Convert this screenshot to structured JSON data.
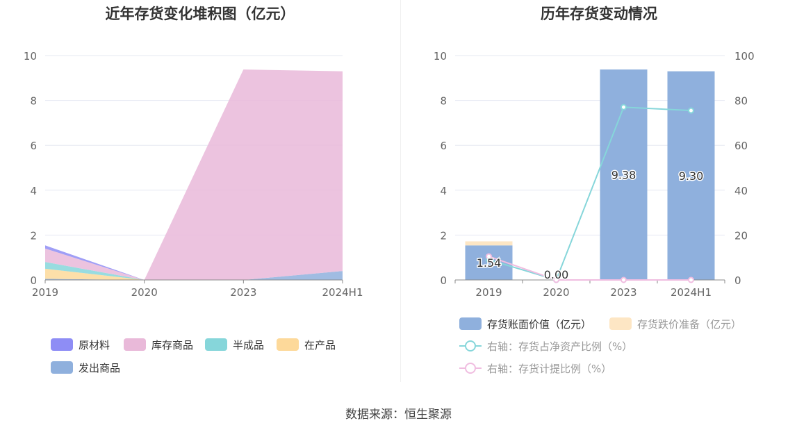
{
  "source_label": "数据来源：恒生聚源",
  "chart_data": [
    {
      "type": "area",
      "title": "近年存货变化堆积图（亿元）",
      "categories": [
        "2019",
        "2020",
        "2023",
        "2024H1"
      ],
      "ylim": [
        0,
        10
      ],
      "yticks": [
        "0",
        "2",
        "4",
        "6",
        "8",
        "10"
      ],
      "grid": true,
      "legend_position": "bottom",
      "series": [
        {
          "name": "发出商品",
          "color": "#8fb0dd",
          "values": [
            0.05,
            0.0,
            0.0,
            0.4
          ]
        },
        {
          "name": "在产品",
          "color": "#fdd99a",
          "values": [
            0.45,
            0.0,
            0.0,
            0.0
          ]
        },
        {
          "name": "半成品",
          "color": "#86d6da",
          "values": [
            0.3,
            0.0,
            0.0,
            0.0
          ]
        },
        {
          "name": "库存商品",
          "color": "#e9b9d9",
          "values": [
            0.6,
            0.0,
            9.38,
            8.9
          ]
        },
        {
          "name": "原材料",
          "color": "#8e8df5",
          "values": [
            0.14,
            0.0,
            0.0,
            0.0
          ]
        }
      ],
      "legend_order": [
        "原材料",
        "库存商品",
        "半成品",
        "在产品",
        "发出商品"
      ]
    },
    {
      "type": "bar",
      "title": "历年存货变动情况",
      "categories": [
        "2019",
        "2020",
        "2023",
        "2024H1"
      ],
      "ylim": [
        0,
        10
      ],
      "yticks": [
        "0",
        "2",
        "4",
        "6",
        "8",
        "10"
      ],
      "y2lim": [
        0,
        100
      ],
      "y2ticks": [
        "0",
        "20",
        "40",
        "60",
        "80",
        "100"
      ],
      "grid": true,
      "legend_position": "bottom",
      "bar_series": [
        {
          "name": "存货账面价值（亿元）",
          "color": "#8fb0dd",
          "values": [
            1.54,
            0.0,
            9.38,
            9.3
          ],
          "labels": [
            "1.54",
            "0.00",
            "9.38",
            "9.30"
          ]
        },
        {
          "name": "存货跌价准备（亿元）",
          "color": "#fde6c4",
          "values": [
            0.18,
            0.0,
            0.0,
            0.0
          ]
        }
      ],
      "line_series": [
        {
          "name": "右轴：存货占净资产比例（%）",
          "color": "#86d6da",
          "values": [
            9.0,
            0.0,
            77.0,
            75.5
          ]
        },
        {
          "name": "右轴：存货计提比例（%）",
          "color": "#f0bde0",
          "values": [
            10.5,
            0.0,
            0.0,
            0.0
          ]
        }
      ]
    }
  ]
}
